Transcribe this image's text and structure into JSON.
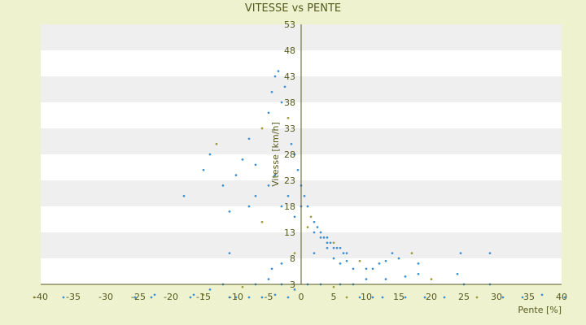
{
  "chart_data": {
    "type": "scatter",
    "title": "VITESSE vs PENTE",
    "xlabel": "Pente [%]",
    "ylabel": "Vitesse [km/h]",
    "xlim": [
      -40,
      40
    ],
    "ylim": [
      3,
      53
    ],
    "xticks": [
      -40,
      -35,
      -30,
      -25,
      -20,
      -15,
      -10,
      -5,
      0,
      5,
      10,
      15,
      20,
      25,
      30,
      35,
      40
    ],
    "yticks": [
      3,
      8,
      13,
      18,
      23,
      28,
      33,
      38,
      43,
      48,
      53
    ],
    "grid": "horizontal-bands",
    "legend": "none",
    "colors": {
      "background": "#eef2cf",
      "plot_band_light": "#ffffff",
      "plot_band_dark": "#efefef",
      "axis": "#555a1f",
      "marker_primary": "#3f8fd6",
      "marker_secondary": "#9a9a3a",
      "text": "#555a1f"
    },
    "series": [
      {
        "points": [
          [
            -41,
            0.5
          ],
          [
            -36.5,
            0.5
          ],
          [
            -25.5,
            0.5
          ],
          [
            -23,
            0.5
          ],
          [
            -22.5,
            1
          ],
          [
            -17,
            0.5
          ],
          [
            -16.5,
            1
          ],
          [
            -15,
            1
          ],
          [
            -11,
            0.5
          ],
          [
            -10,
            0.5
          ],
          [
            -8,
            0.5
          ],
          [
            -6,
            0.5
          ],
          [
            -4,
            1
          ],
          [
            -2,
            0.5
          ],
          [
            7,
            0.5
          ],
          [
            9,
            0.5
          ],
          [
            11,
            0.5
          ],
          [
            12.5,
            0.5
          ],
          [
            16,
            0.5
          ],
          [
            19,
            0.5
          ],
          [
            22,
            0.5
          ],
          [
            27,
            0.5
          ],
          [
            31,
            0.5
          ],
          [
            34,
            0.5
          ],
          [
            37,
            1
          ],
          [
            40.5,
            0.5
          ],
          [
            -14,
            2
          ],
          [
            -12,
            3
          ],
          [
            -9,
            2.5
          ],
          [
            -7,
            3
          ],
          [
            -5,
            4
          ],
          [
            -3,
            3
          ],
          [
            -1,
            2
          ],
          [
            1,
            3
          ],
          [
            3,
            3
          ],
          [
            5,
            2.5
          ],
          [
            6,
            3
          ],
          [
            8,
            3
          ],
          [
            10,
            4
          ],
          [
            13,
            4
          ],
          [
            16,
            4.5
          ],
          [
            18,
            5
          ],
          [
            20,
            4
          ],
          [
            24,
            5
          ],
          [
            25,
            3
          ],
          [
            29,
            3
          ],
          [
            -11,
            9
          ],
          [
            -4.5,
            6
          ],
          [
            -3,
            7
          ],
          [
            -1,
            9
          ],
          [
            2,
            9
          ],
          [
            4,
            10
          ],
          [
            5,
            8
          ],
          [
            6,
            7
          ],
          [
            7,
            7.5
          ],
          [
            8,
            6
          ],
          [
            9,
            7.5
          ],
          [
            10,
            6
          ],
          [
            11,
            6
          ],
          [
            12,
            7
          ],
          [
            13,
            7.5
          ],
          [
            14,
            9
          ],
          [
            15,
            8
          ],
          [
            17,
            9
          ],
          [
            18,
            7
          ],
          [
            24.5,
            9
          ],
          [
            29,
            9
          ],
          [
            -18,
            20
          ],
          [
            -15,
            25
          ],
          [
            -14,
            28
          ],
          [
            -13,
            30
          ],
          [
            -12,
            22
          ],
          [
            -11,
            17
          ],
          [
            -10,
            24
          ],
          [
            -9,
            27
          ],
          [
            -8,
            31
          ],
          [
            -7,
            26
          ],
          [
            -6,
            33
          ],
          [
            -5,
            36
          ],
          [
            -4.5,
            40
          ],
          [
            -4,
            43
          ],
          [
            -3.5,
            44
          ],
          [
            -3,
            38
          ],
          [
            -2.5,
            41
          ],
          [
            -2,
            35
          ],
          [
            -1.5,
            30
          ],
          [
            -1,
            28
          ],
          [
            -0.5,
            25
          ],
          [
            0,
            22
          ],
          [
            0.5,
            20
          ],
          [
            1,
            18
          ],
          [
            1.5,
            16
          ],
          [
            2,
            15
          ],
          [
            2.5,
            14
          ],
          [
            3,
            13
          ],
          [
            3.5,
            12
          ],
          [
            4,
            12
          ],
          [
            4.5,
            11
          ],
          [
            5,
            11
          ],
          [
            5.5,
            10
          ],
          [
            6,
            10
          ],
          [
            6.5,
            9
          ],
          [
            7,
            9
          ],
          [
            -8,
            18
          ],
          [
            -7,
            20
          ],
          [
            -6,
            15
          ],
          [
            -5,
            22
          ],
          [
            -4,
            24
          ],
          [
            -3,
            18
          ],
          [
            -2,
            20
          ],
          [
            -1,
            16
          ],
          [
            0,
            18
          ],
          [
            1,
            14
          ],
          [
            2,
            13
          ],
          [
            3,
            12
          ],
          [
            4,
            11
          ],
          [
            5,
            10
          ]
        ]
      }
    ]
  }
}
